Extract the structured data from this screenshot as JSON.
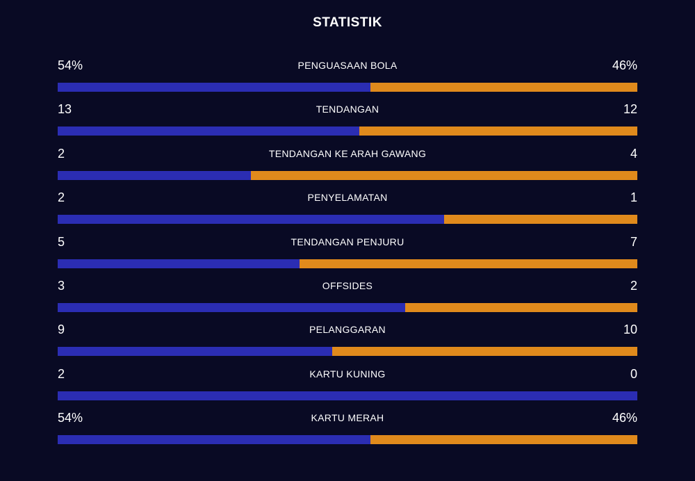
{
  "title": "STATISTIK",
  "colors": {
    "background": "#090a24",
    "home_bar": "#2b2db3",
    "away_bar": "#e08a1c",
    "text": "#ffffff"
  },
  "stats": [
    {
      "label": "PENGUASAAN BOLA",
      "home": "54%",
      "away": "46%",
      "home_share": 0.54
    },
    {
      "label": "TENDANGAN",
      "home": "13",
      "away": "12",
      "home_share": 0.52
    },
    {
      "label": "TENDANGAN KE ARAH GAWANG",
      "home": "2",
      "away": "4",
      "home_share": 0.333
    },
    {
      "label": "PENYELAMATAN",
      "home": "2",
      "away": "1",
      "home_share": 0.667
    },
    {
      "label": "TENDANGAN PENJURU",
      "home": "5",
      "away": "7",
      "home_share": 0.417
    },
    {
      "label": "OFFSIDES",
      "home": "3",
      "away": "2",
      "home_share": 0.6
    },
    {
      "label": "PELANGGARAN",
      "home": "9",
      "away": "10",
      "home_share": 0.474
    },
    {
      "label": "KARTU KUNING",
      "home": "2",
      "away": "0",
      "home_share": 1.0
    },
    {
      "label": "KARTU MERAH",
      "home": "54%",
      "away": "46%",
      "home_share": 0.54
    }
  ]
}
